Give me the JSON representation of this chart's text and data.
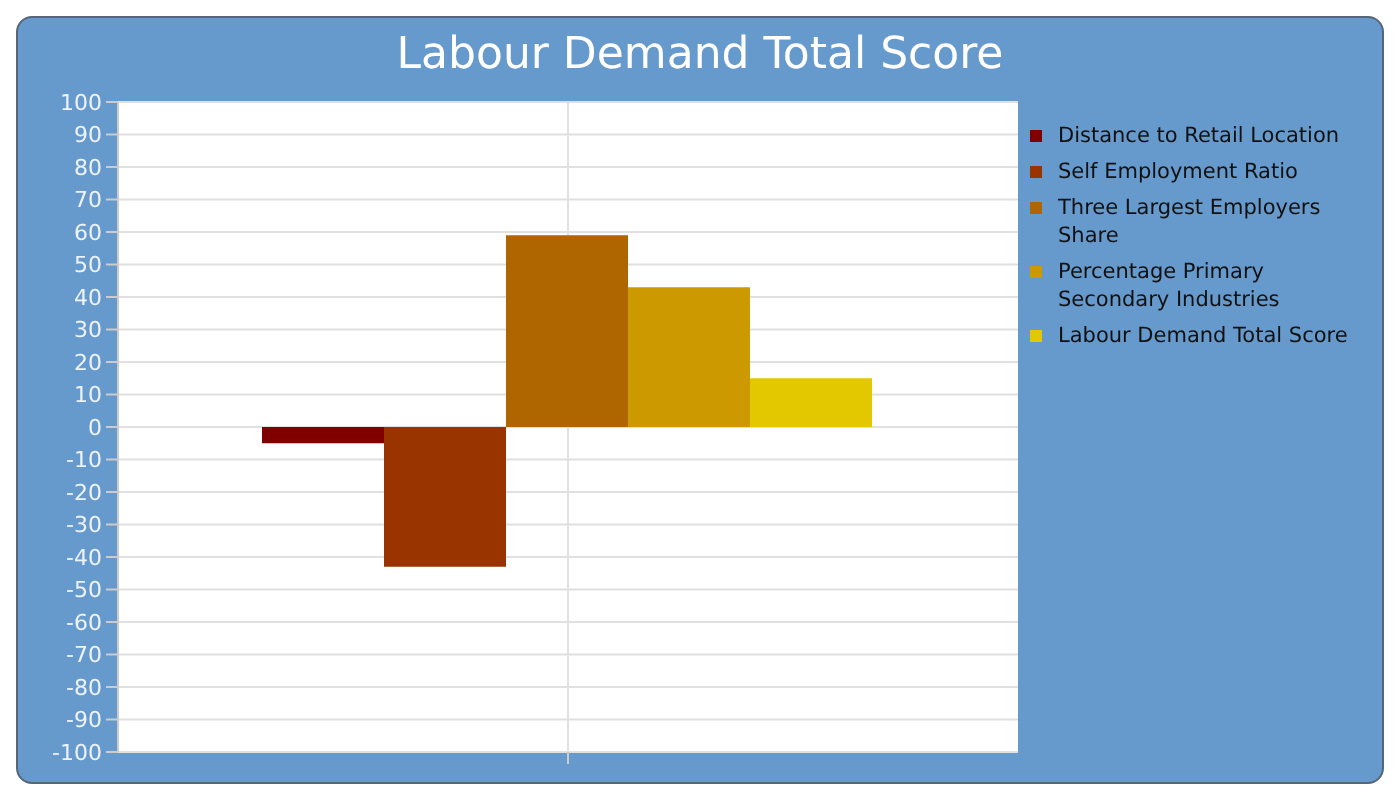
{
  "chart_data": {
    "type": "bar",
    "title": "Labour Demand Total Score",
    "categories": [
      null
    ],
    "series": [
      {
        "name": "Distance to Retail Location",
        "color": "#800000",
        "values": [
          -5
        ]
      },
      {
        "name": "Self Employment Ratio",
        "color": "#993300",
        "values": [
          -43
        ]
      },
      {
        "name": "Three Largest Employers Share",
        "color": "#b06600",
        "values": [
          59
        ]
      },
      {
        "name": "Percentage Primary Secondary Industries",
        "color": "#cc9900",
        "values": [
          43
        ]
      },
      {
        "name": "Labour Demand Total Score",
        "color": "#e3c800",
        "values": [
          15
        ]
      }
    ],
    "ylim": [
      -100,
      100
    ],
    "yticks": [
      -100,
      -90,
      -80,
      -70,
      -60,
      -50,
      -40,
      -30,
      -20,
      -10,
      0,
      10,
      20,
      30,
      40,
      50,
      60,
      70,
      80,
      90,
      100
    ],
    "grid": true,
    "legend": "right"
  }
}
